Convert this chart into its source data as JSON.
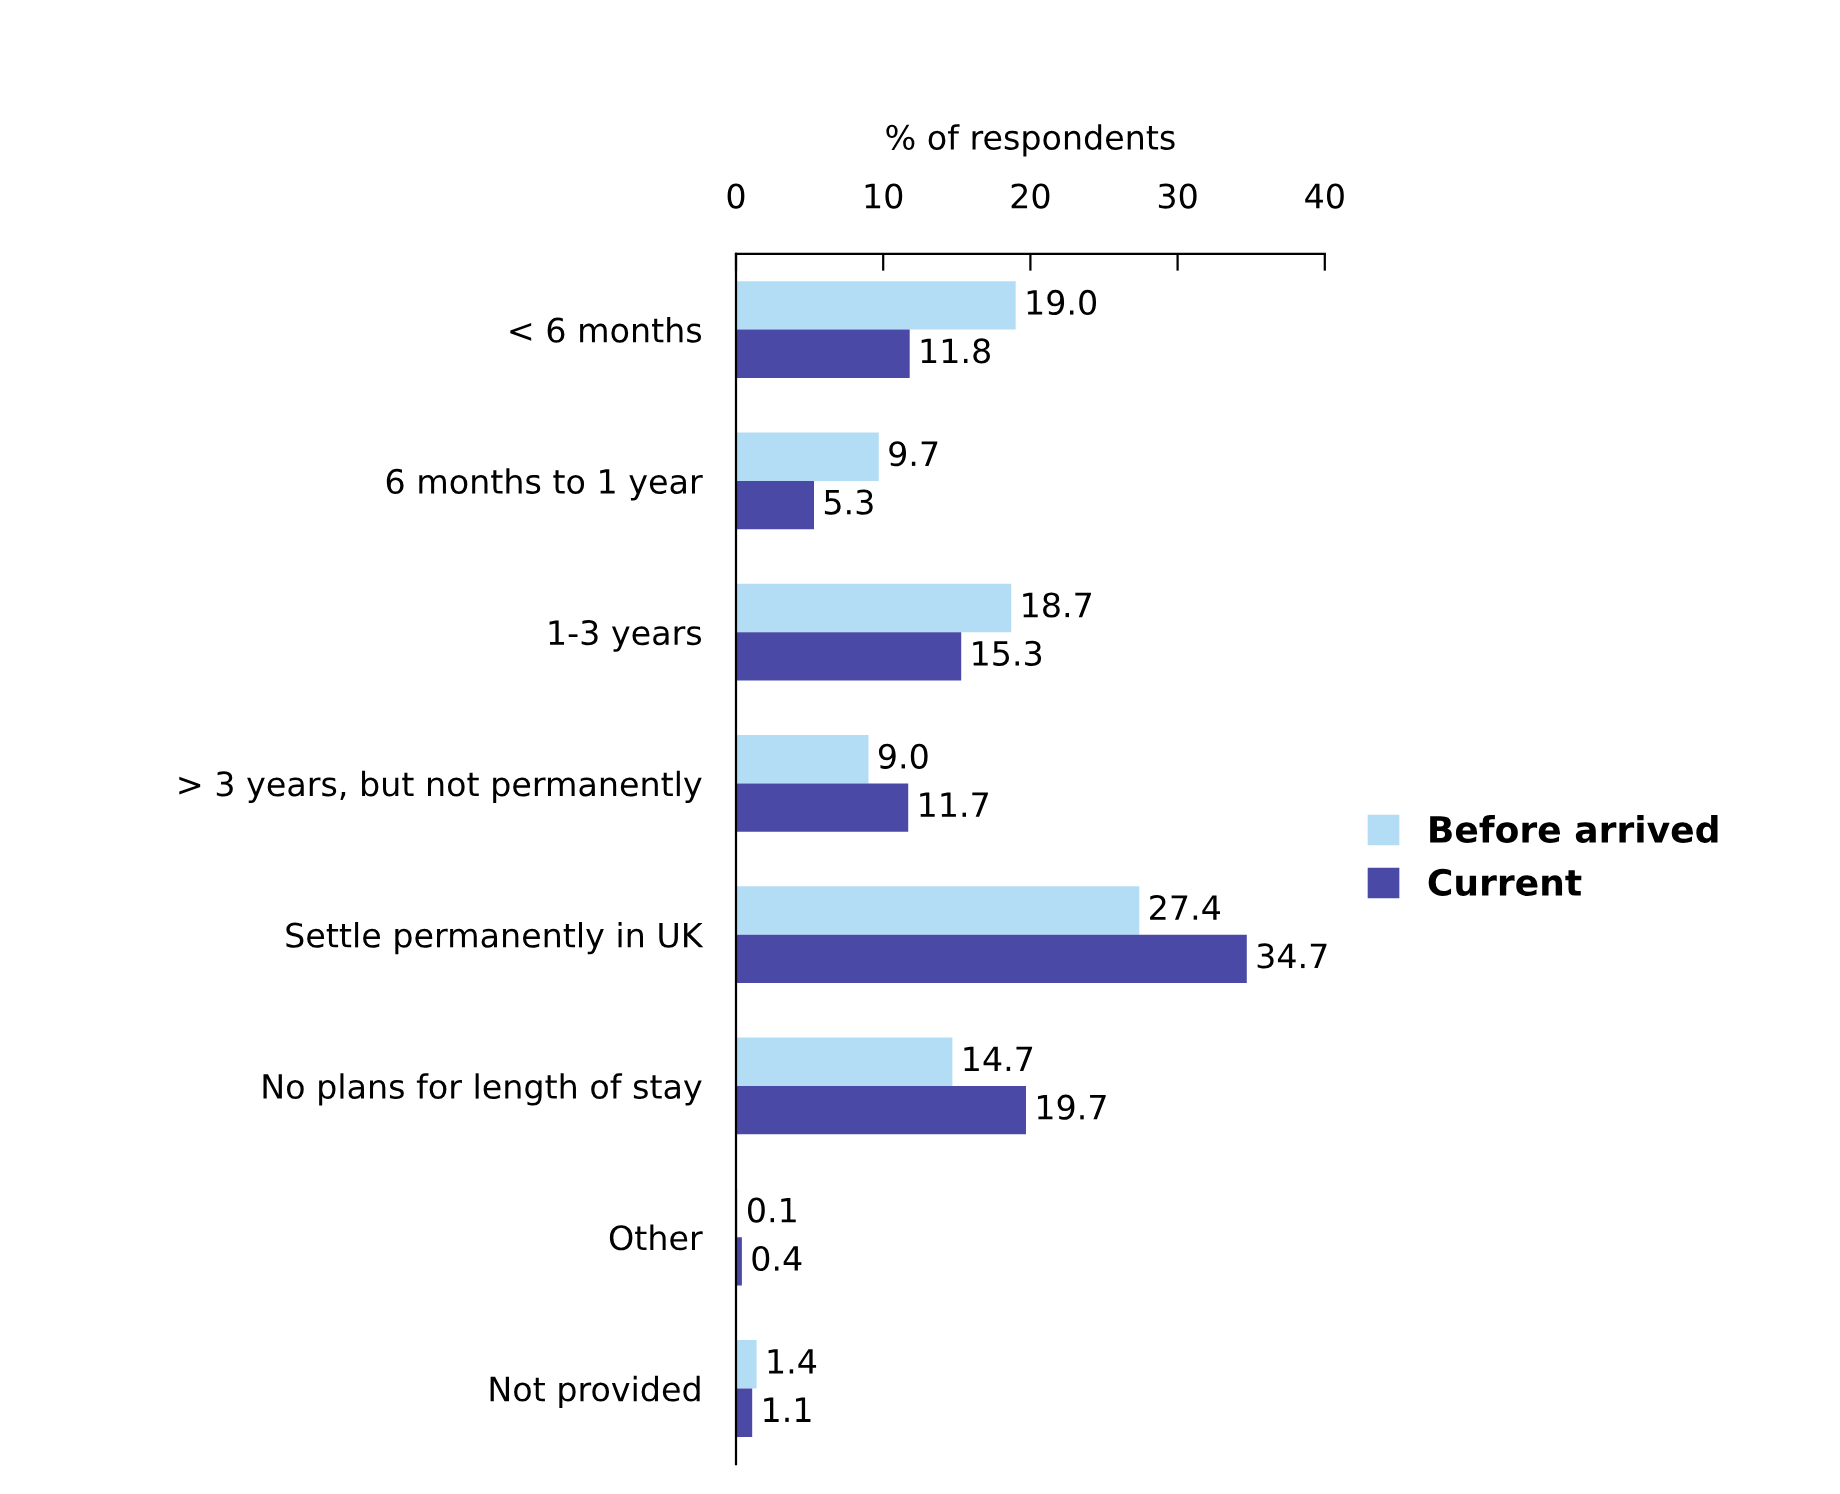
{
  "chart_data": {
    "type": "bar",
    "orientation": "horizontal",
    "xlabel": "% of respondents",
    "categories": [
      "< 6 months",
      "6 months to 1 year",
      "1-3 years",
      "> 3 years, but not permanently",
      "Settle permanently in UK",
      "No plans for length of stay",
      "Other",
      "Not provided"
    ],
    "series": [
      {
        "name": "Before arrived",
        "color": "#b3dcf5",
        "values": [
          19.0,
          9.7,
          18.7,
          9.0,
          27.4,
          14.7,
          0.1,
          1.4
        ],
        "value_labels": [
          "19.0",
          "9.7",
          "18.7",
          "9.0",
          "27.4",
          "14.7",
          "0.1",
          "1.4"
        ]
      },
      {
        "name": "Current",
        "color": "#4a4aa6",
        "values": [
          11.8,
          5.3,
          15.3,
          11.7,
          34.7,
          19.7,
          0.4,
          1.1
        ],
        "value_labels": [
          "11.8",
          "5.3",
          "15.3",
          "11.7",
          "34.7",
          "19.7",
          "0.4",
          "1.1"
        ]
      }
    ],
    "xlim": [
      0,
      40
    ],
    "xticks": [
      0,
      10,
      20,
      30,
      40
    ],
    "legend": "right",
    "grid": false
  }
}
